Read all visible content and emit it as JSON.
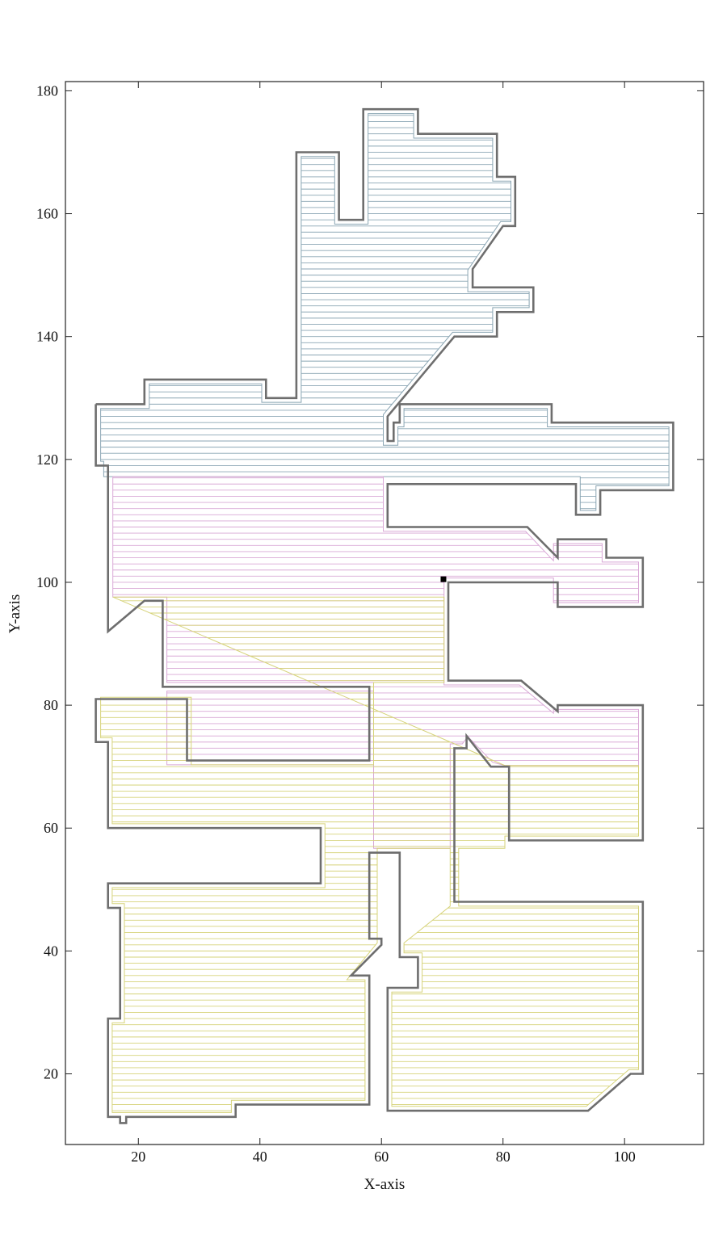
{
  "chart_data": {
    "type": "line",
    "title": "",
    "xlabel": "X-axis",
    "ylabel": "Y-axis",
    "xlim": [
      8,
      113
    ],
    "ylim": [
      8.5,
      181.5
    ],
    "x_ticks": [
      20,
      40,
      60,
      80,
      100
    ],
    "y_ticks": [
      20,
      40,
      60,
      80,
      100,
      120,
      140,
      160,
      180
    ],
    "grid": false,
    "legend": "none",
    "start_marker": {
      "x": 70.2,
      "y": 100.5
    },
    "boundary_color": "#6e6e6e",
    "region_colors": {
      "upper": "#8ba6b4",
      "middle": "#d9a8d6",
      "lower": "#d6d37a"
    },
    "outer_boundary": [
      [
        13,
        129
      ],
      [
        21,
        129
      ],
      [
        21,
        133
      ],
      [
        41,
        133
      ],
      [
        41,
        130
      ],
      [
        46,
        130
      ],
      [
        46,
        170
      ],
      [
        53,
        170
      ],
      [
        53,
        159
      ],
      [
        57,
        159
      ],
      [
        57,
        177
      ],
      [
        66,
        177
      ],
      [
        66,
        173
      ],
      [
        79,
        173
      ],
      [
        79,
        166
      ],
      [
        82,
        166
      ],
      [
        82,
        158
      ],
      [
        80,
        158
      ],
      [
        75,
        151
      ],
      [
        75,
        148
      ],
      [
        85,
        148
      ],
      [
        85,
        144
      ],
      [
        79,
        144
      ],
      [
        79,
        140
      ],
      [
        72,
        140
      ],
      [
        61,
        127
      ],
      [
        61,
        123
      ],
      [
        62,
        123
      ],
      [
        62,
        126
      ],
      [
        63,
        126
      ],
      [
        63,
        129
      ],
      [
        88,
        129
      ],
      [
        88,
        126
      ],
      [
        108,
        126
      ],
      [
        108,
        115
      ],
      [
        96,
        115
      ],
      [
        96,
        111
      ],
      [
        92,
        111
      ],
      [
        92,
        116
      ],
      [
        61,
        116
      ],
      [
        61,
        109
      ],
      [
        84,
        109
      ],
      [
        89,
        104
      ],
      [
        89,
        107
      ],
      [
        97,
        107
      ],
      [
        97,
        104
      ],
      [
        103,
        104
      ],
      [
        103,
        96
      ],
      [
        89,
        96
      ],
      [
        89,
        100
      ],
      [
        71,
        100
      ],
      [
        71,
        84
      ],
      [
        83,
        84
      ],
      [
        89,
        79
      ],
      [
        89,
        80
      ],
      [
        103,
        80
      ],
      [
        103,
        58
      ],
      [
        81,
        58
      ],
      [
        81,
        70
      ],
      [
        78,
        70
      ],
      [
        74,
        75
      ],
      [
        74,
        73
      ],
      [
        72,
        73
      ],
      [
        72,
        48
      ],
      [
        103,
        48
      ],
      [
        103,
        20
      ],
      [
        101,
        20
      ],
      [
        94,
        14
      ],
      [
        61,
        14
      ],
      [
        61,
        34
      ],
      [
        66,
        34
      ],
      [
        66,
        39
      ],
      [
        63,
        39
      ],
      [
        63,
        56
      ],
      [
        58,
        56
      ],
      [
        58,
        42
      ],
      [
        60,
        42
      ],
      [
        60,
        41
      ],
      [
        55,
        36
      ],
      [
        58,
        36
      ],
      [
        58,
        15
      ],
      [
        36,
        15
      ],
      [
        36,
        13
      ],
      [
        18,
        13
      ],
      [
        18,
        12
      ],
      [
        17,
        12
      ],
      [
        17,
        13
      ],
      [
        15,
        13
      ],
      [
        15,
        29
      ],
      [
        17,
        29
      ],
      [
        17,
        47
      ],
      [
        15,
        47
      ],
      [
        15,
        51
      ],
      [
        50,
        51
      ],
      [
        50,
        60
      ],
      [
        15,
        60
      ],
      [
        15,
        74
      ],
      [
        13,
        74
      ],
      [
        13,
        81
      ],
      [
        28,
        81
      ],
      [
        28,
        71
      ],
      [
        58,
        71
      ],
      [
        58,
        83
      ],
      [
        24,
        83
      ],
      [
        24,
        97
      ],
      [
        21,
        97
      ],
      [
        15,
        92
      ],
      [
        15,
        119
      ],
      [
        13,
        119
      ],
      [
        13,
        129
      ]
    ],
    "regions": [
      {
        "name": "upper",
        "polygon": [
          [
            13.8,
            128.3
          ],
          [
            21.8,
            128.3
          ],
          [
            21.8,
            132.3
          ],
          [
            40.3,
            132.3
          ],
          [
            40.3,
            129.3
          ],
          [
            46.8,
            129.3
          ],
          [
            46.8,
            169.3
          ],
          [
            52.3,
            169.3
          ],
          [
            52.3,
            158.3
          ],
          [
            57.8,
            158.3
          ],
          [
            57.8,
            176.3
          ],
          [
            65.3,
            176.3
          ],
          [
            65.3,
            172.3
          ],
          [
            78.3,
            172.3
          ],
          [
            78.3,
            165.3
          ],
          [
            81.3,
            165.3
          ],
          [
            81.3,
            158.7
          ],
          [
            79.6,
            158.7
          ],
          [
            74.2,
            150.8
          ],
          [
            74.2,
            147.3
          ],
          [
            84.3,
            147.3
          ],
          [
            84.3,
            144.7
          ],
          [
            78.3,
            144.7
          ],
          [
            78.3,
            140.7
          ],
          [
            71.7,
            140.7
          ],
          [
            60.3,
            127.3
          ],
          [
            60.3,
            122.3
          ],
          [
            62.7,
            122.3
          ],
          [
            62.7,
            125.3
          ],
          [
            63.7,
            125.3
          ],
          [
            63.7,
            128.3
          ],
          [
            87.3,
            128.3
          ],
          [
            87.3,
            125.3
          ],
          [
            107.3,
            125.3
          ],
          [
            107.3,
            115.7
          ],
          [
            95.3,
            115.7
          ],
          [
            95.3,
            111.7
          ],
          [
            92.7,
            111.7
          ],
          [
            92.7,
            117.2
          ],
          [
            14.3,
            117.2
          ],
          [
            14.3,
            119.7
          ],
          [
            13.8,
            119.7
          ]
        ]
      },
      {
        "name": "middle",
        "polygon": [
          [
            15.8,
            117.2
          ],
          [
            60.3,
            117.2
          ],
          [
            60.3,
            108.3
          ],
          [
            83.7,
            108.3
          ],
          [
            88.3,
            103.5
          ],
          [
            88.3,
            106.3
          ],
          [
            96.3,
            106.3
          ],
          [
            96.3,
            103.3
          ],
          [
            102.3,
            103.3
          ],
          [
            102.3,
            96.7
          ],
          [
            88.3,
            96.7
          ],
          [
            88.3,
            100.7
          ],
          [
            70.3,
            100.7
          ],
          [
            70.3,
            83.3
          ],
          [
            82.7,
            83.3
          ],
          [
            88.3,
            78.7
          ],
          [
            88.3,
            79.3
          ],
          [
            102.3,
            79.3
          ],
          [
            102.3,
            70.2
          ],
          [
            80.3,
            70.2
          ],
          [
            78.3,
            70.7
          ],
          [
            74.2,
            74.9
          ],
          [
            73.3,
            73.7
          ],
          [
            71.3,
            73.7
          ],
          [
            71.3,
            56.7
          ],
          [
            58.7,
            56.7
          ],
          [
            58.7,
            70.3
          ],
          [
            24.7,
            70.3
          ],
          [
            24.7,
            82.3
          ],
          [
            58.7,
            82.3
          ],
          [
            58.7,
            83.7
          ],
          [
            24.7,
            83.7
          ],
          [
            24.7,
            97.6
          ],
          [
            15.8,
            97.6
          ]
        ]
      },
      {
        "name": "lower",
        "polygon": [
          [
            15.8,
            97.6
          ],
          [
            70.3,
            97.6
          ],
          [
            70.3,
            83.7
          ],
          [
            58.7,
            83.7
          ],
          [
            58.7,
            70.3
          ],
          [
            28.7,
            70.3
          ],
          [
            28.7,
            81.3
          ],
          [
            13.8,
            81.3
          ],
          [
            13.8,
            74.7
          ],
          [
            15.7,
            74.7
          ],
          [
            15.7,
            60.7
          ],
          [
            50.7,
            60.7
          ],
          [
            50.7,
            50.3
          ],
          [
            15.7,
            50.3
          ],
          [
            15.7,
            47.7
          ],
          [
            17.7,
            47.7
          ],
          [
            17.7,
            28.3
          ],
          [
            15.7,
            28.3
          ],
          [
            15.7,
            13.7
          ],
          [
            35.3,
            13.7
          ],
          [
            35.3,
            15.7
          ],
          [
            57.3,
            15.7
          ],
          [
            57.3,
            35.3
          ],
          [
            54.3,
            35.3
          ],
          [
            59.3,
            41.3
          ],
          [
            59.3,
            56.7
          ],
          [
            71.3,
            56.7
          ],
          [
            71.3,
            47.3
          ],
          [
            63.7,
            41.3
          ],
          [
            63.7,
            39.7
          ],
          [
            66.7,
            39.7
          ],
          [
            66.7,
            33.3
          ],
          [
            61.7,
            33.3
          ],
          [
            61.7,
            14.7
          ],
          [
            93.7,
            14.7
          ],
          [
            100.7,
            20.7
          ],
          [
            102.3,
            20.7
          ],
          [
            102.3,
            47.3
          ],
          [
            72.7,
            47.3
          ],
          [
            72.7,
            56.7
          ],
          [
            80.3,
            56.7
          ],
          [
            80.3,
            58.7
          ],
          [
            102.3,
            58.7
          ],
          [
            102.3,
            70.2
          ],
          [
            80.3,
            70.2
          ]
        ]
      }
    ]
  }
}
